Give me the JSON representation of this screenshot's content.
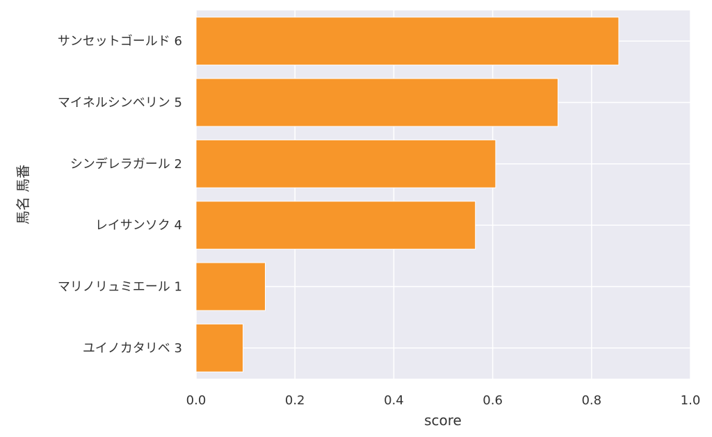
{
  "chart_data": {
    "type": "bar",
    "orientation": "horizontal",
    "categories": [
      "サンセットゴールド 6",
      "マイネルシンベリン 5",
      "シンデレラガール 2",
      "レイサンソク 4",
      "マリノリュミエール 1",
      "ユイノカタリベ 3"
    ],
    "values": [
      0.855,
      0.732,
      0.606,
      0.565,
      0.14,
      0.095
    ],
    "xlabel": "score",
    "ylabel": "馬名 馬番",
    "xlim": [
      0.0,
      1.0
    ],
    "xticks": [
      "0.0",
      "0.2",
      "0.4",
      "0.6",
      "0.8",
      "1.0"
    ],
    "grid": true,
    "bar_color": "#f7962a",
    "plot_background": "#eaeaf2",
    "grid_color": "#ffffff"
  }
}
